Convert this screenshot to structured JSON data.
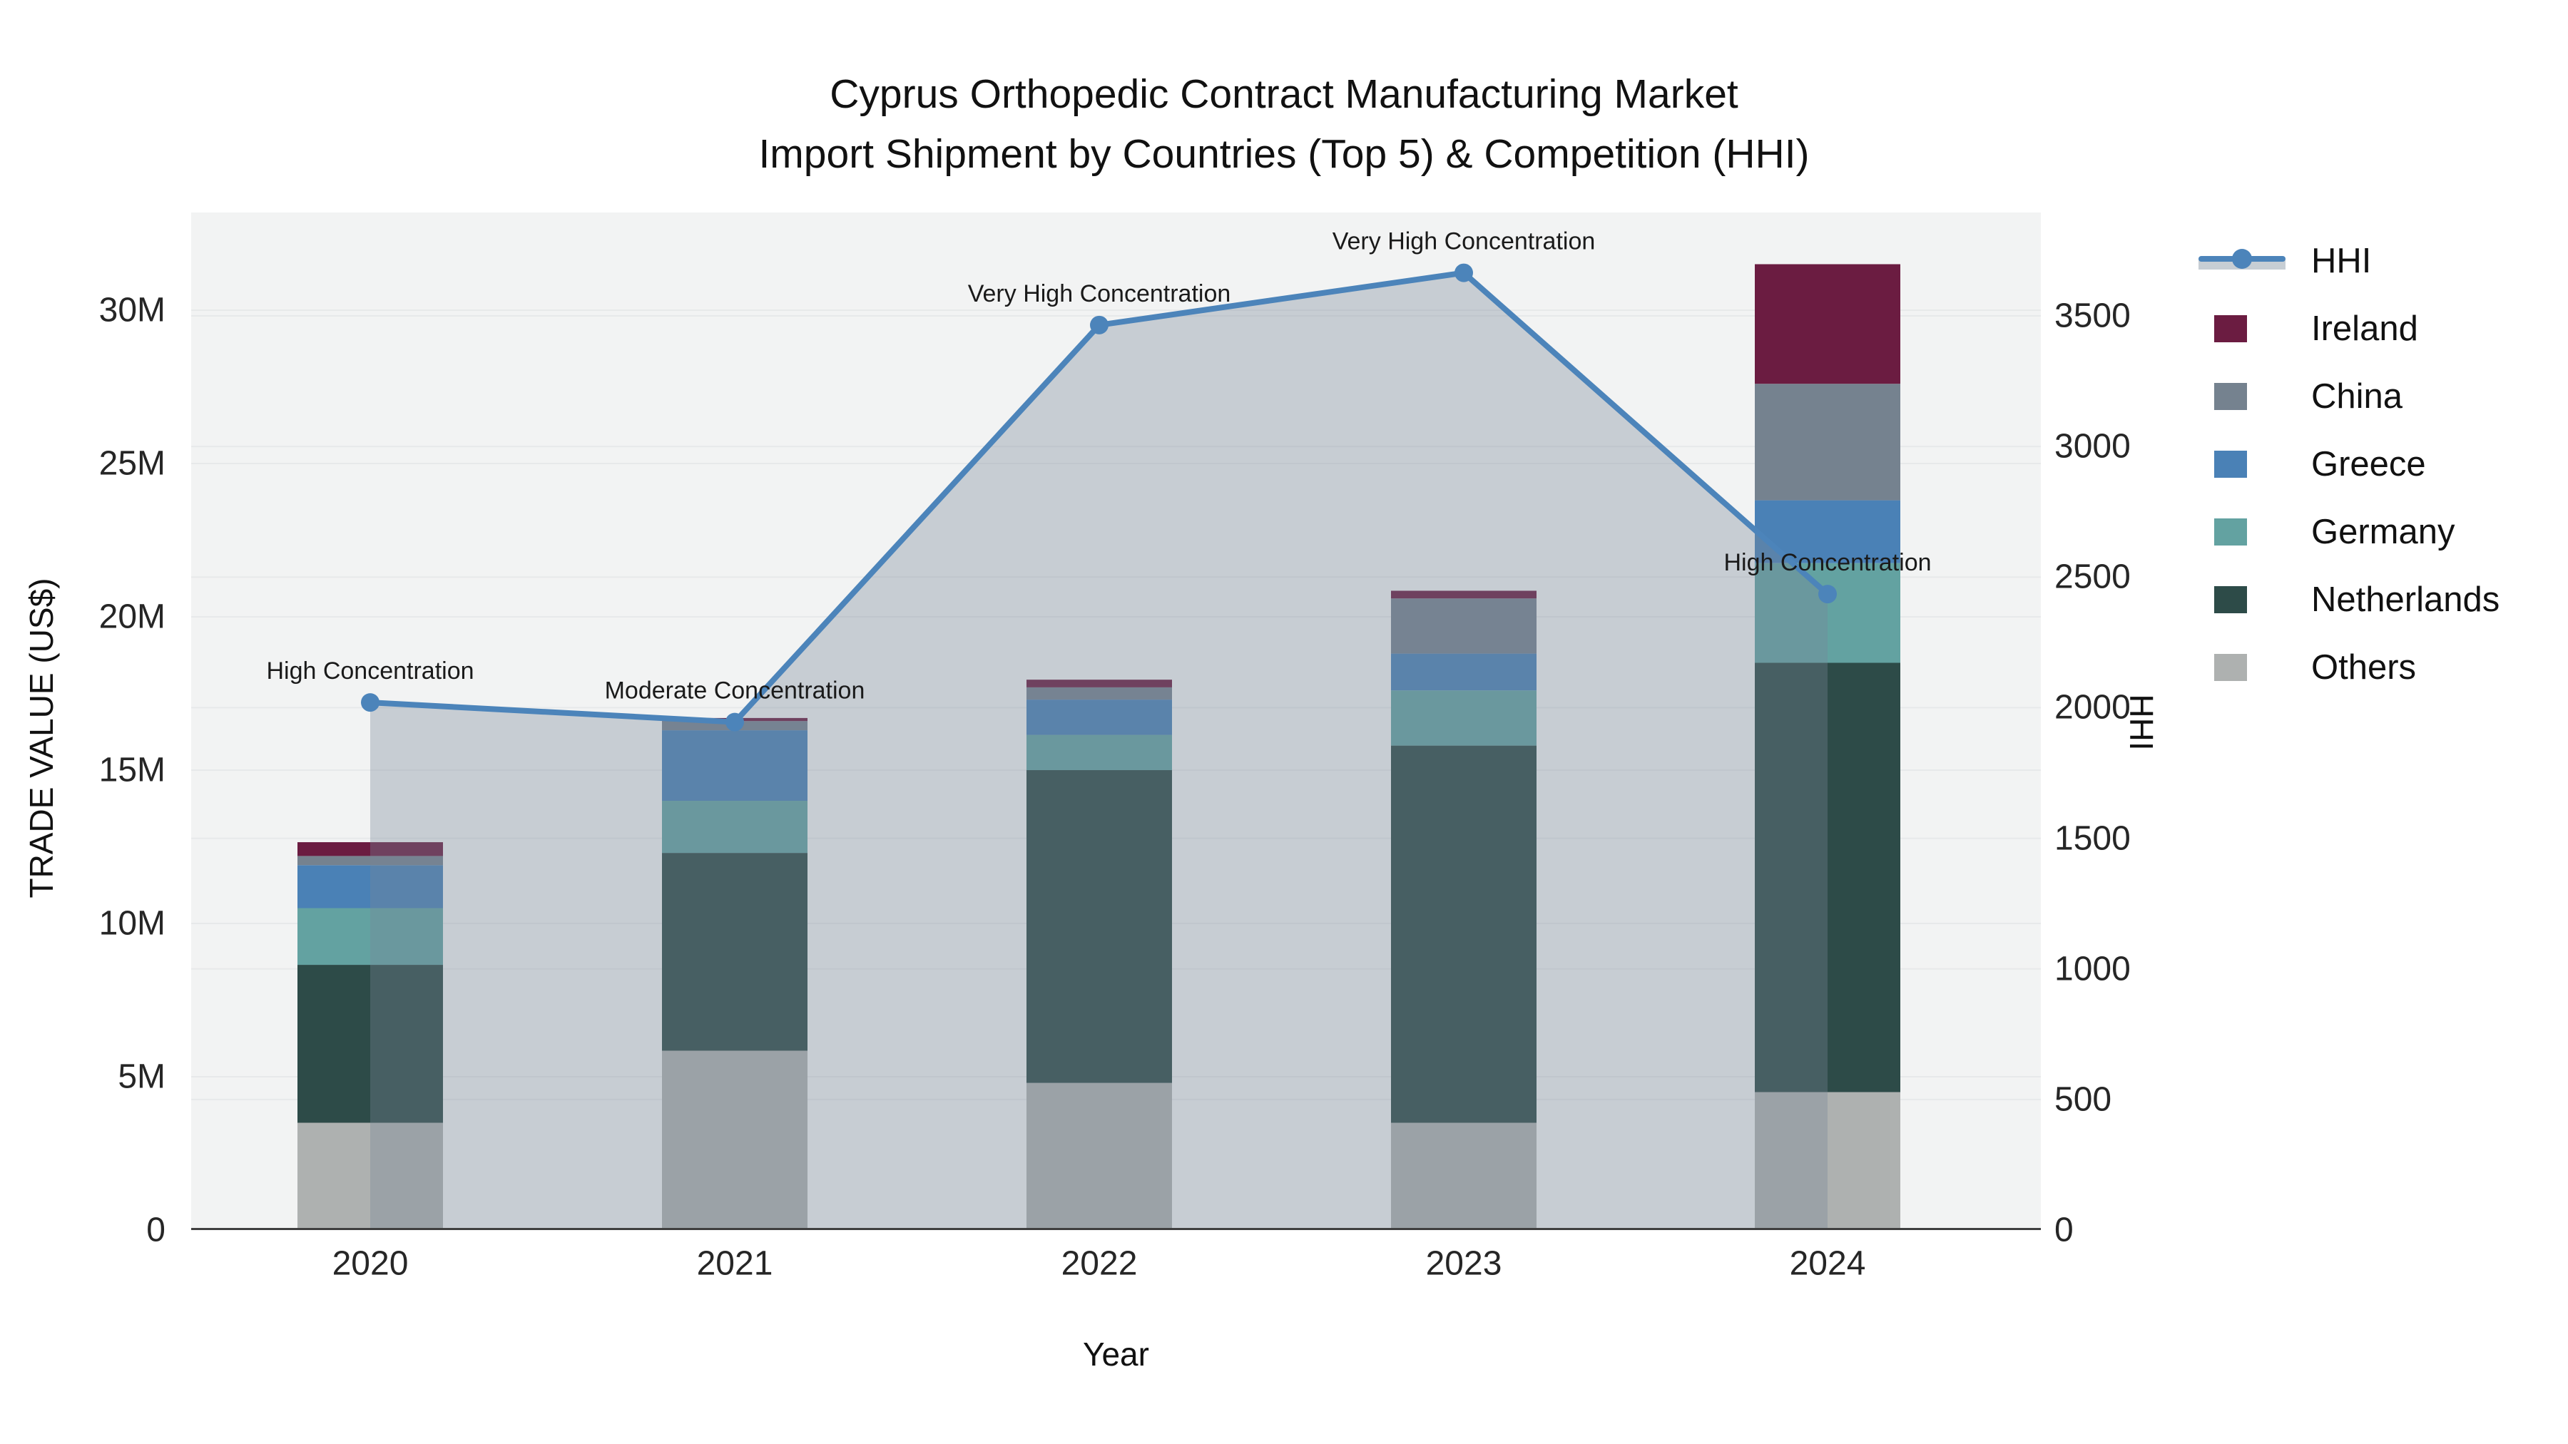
{
  "title": {
    "line1": "Cyprus Orthopedic Contract Manufacturing Market",
    "line2": "Import Shipment by Countries (Top 5) & Competition (HHI)"
  },
  "axes": {
    "left": {
      "title": "TRADE VALUE (US$)",
      "tick_labels": [
        "0",
        "5M",
        "10M",
        "15M",
        "20M",
        "25M",
        "30M"
      ],
      "tick_values_millions": [
        0,
        5,
        10,
        15,
        20,
        25,
        30
      ]
    },
    "right": {
      "title": "HHI",
      "tick_labels": [
        "0",
        "500",
        "1000",
        "1500",
        "2000",
        "2500",
        "3000",
        "3500"
      ],
      "tick_values": [
        0,
        500,
        1000,
        1500,
        2000,
        2500,
        3000,
        3500
      ]
    },
    "x": {
      "title": "Year"
    }
  },
  "colors": {
    "plot_bg": "#F2F3F3",
    "grid": "#E7E9EA",
    "axis_line": "#3F3F3F",
    "text": "#1A1A1A",
    "hhi_line": "#4C84BA",
    "hhi_area_fill": "rgba(119,136,153,0.35)"
  },
  "chart_data": {
    "type": "combo",
    "subtypes": [
      "stacked-bar",
      "line"
    ],
    "title": "Cyprus Orthopedic Contract Manufacturing Market — Import Shipment by Countries (Top 5) & Competition (HHI)",
    "categories": [
      "2020",
      "2021",
      "2022",
      "2023",
      "2024"
    ],
    "bar_value_unit": "million US$",
    "stack_order_bottom_to_top": [
      "Others",
      "Netherlands",
      "Germany",
      "Greece",
      "China",
      "Ireland"
    ],
    "series": [
      {
        "name": "Ireland",
        "color": "#6B1C41",
        "values": [
          0.45,
          0.1,
          0.25,
          0.25,
          3.9
        ]
      },
      {
        "name": "China",
        "color": "#75828F",
        "values": [
          0.3,
          0.3,
          0.4,
          1.8,
          3.8
        ]
      },
      {
        "name": "Greece",
        "color": "#4A81B6",
        "values": [
          1.4,
          2.3,
          1.15,
          1.2,
          2.05
        ]
      },
      {
        "name": "Germany",
        "color": "#63A2A1",
        "values": [
          1.85,
          1.7,
          1.15,
          1.8,
          3.25
        ]
      },
      {
        "name": "Netherlands",
        "color": "#2D4B48",
        "values": [
          5.15,
          6.45,
          10.2,
          12.3,
          14.0
        ]
      },
      {
        "name": "Others",
        "color": "#AEB1B0",
        "values": [
          3.5,
          5.85,
          4.8,
          3.5,
          4.5
        ]
      }
    ],
    "bar_totals_millions": [
      12.65,
      16.7,
      17.95,
      20.85,
      31.5
    ],
    "line_series": {
      "name": "HHI",
      "values": [
        2020,
        1945,
        3465,
        3665,
        2435
      ]
    },
    "annotations": [
      {
        "category": "2020",
        "text": "High Concentration"
      },
      {
        "category": "2021",
        "text": "Moderate Concentration"
      },
      {
        "category": "2022",
        "text": "Very High Concentration"
      },
      {
        "category": "2023",
        "text": "Very High Concentration"
      },
      {
        "category": "2024",
        "text": "High Concentration"
      }
    ],
    "ylabel": "TRADE VALUE (US$)",
    "y2label": "HHI",
    "xlabel": "Year",
    "ylim_millions": [
      0,
      33.2
    ],
    "y2lim": [
      0,
      3896
    ],
    "grid": true,
    "legend_position": "right"
  },
  "legend": {
    "items": [
      {
        "label": "HHI",
        "marker": "line-dot"
      },
      {
        "label": "Ireland",
        "marker": "swatch"
      },
      {
        "label": "China",
        "marker": "swatch"
      },
      {
        "label": "Greece",
        "marker": "swatch"
      },
      {
        "label": "Germany",
        "marker": "swatch"
      },
      {
        "label": "Netherlands",
        "marker": "swatch"
      },
      {
        "label": "Others",
        "marker": "swatch"
      }
    ]
  }
}
